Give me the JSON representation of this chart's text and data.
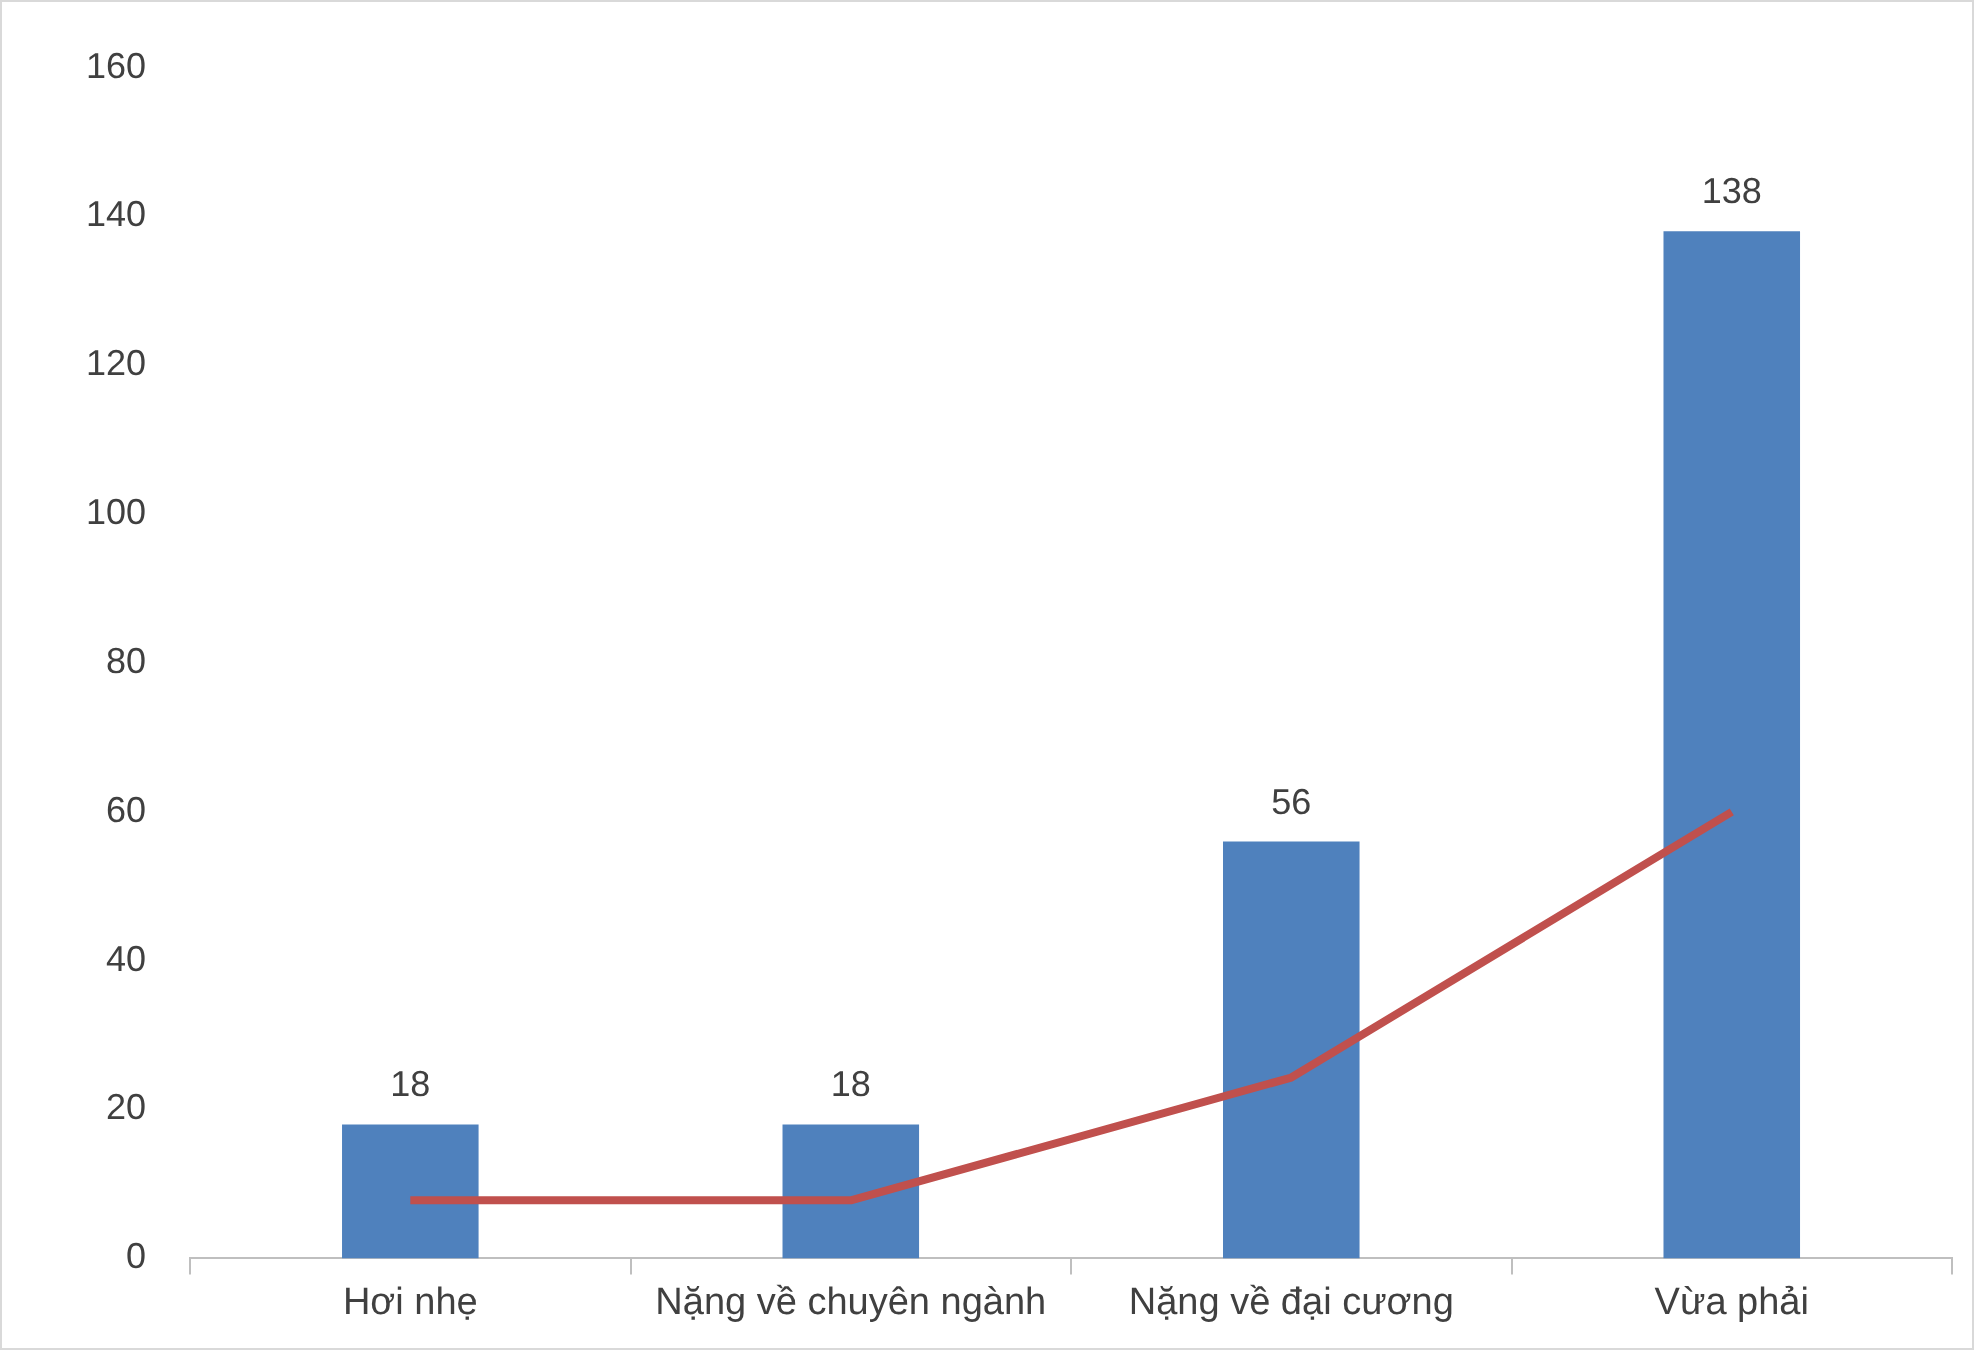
{
  "chart_data": {
    "type": "bar",
    "categories": [
      "Hơi nhẹ",
      "Nặng về chuyên ngành",
      "Nặng về đại cương",
      "Vừa phải"
    ],
    "series": [
      {
        "color": "#4f81bd",
        "values": [
          18,
          18,
          56,
          138
        ],
        "value_labels": [
          "18",
          "18",
          "56",
          "138"
        ]
      },
      {
        "type": "line",
        "color": "#c0504d",
        "values": [
          7.8,
          7.8,
          24.3,
          60
        ],
        "marker": "none"
      }
    ],
    "ylim": [
      0,
      160
    ],
    "yticks": [
      0,
      20,
      40,
      60,
      80,
      100,
      120,
      140,
      160
    ],
    "grid": false,
    "legend": false
  }
}
